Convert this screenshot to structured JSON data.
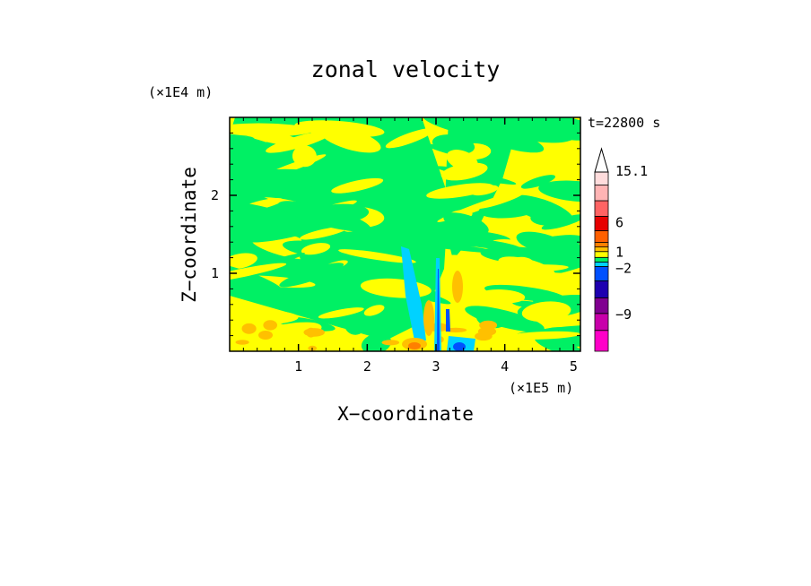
{
  "chart_data": {
    "type": "heatmap",
    "title": "zonal velocity",
    "xlabel": "X−coordinate",
    "ylabel": "Z−coordinate",
    "x_multiplier": "(×1E5 m)",
    "z_multiplier": "(×1E4 m)",
    "time_label": "t=22800 s",
    "x_ticks": [
      "1",
      "2",
      "3",
      "4",
      "5"
    ],
    "z_ticks": [
      "1",
      "2"
    ],
    "xlim": [
      0,
      5.1
    ],
    "zlim": [
      0,
      3
    ],
    "colorbar": {
      "max_label": "15.1",
      "tick_labels": [
        "15.1",
        "6",
        "1",
        "−2",
        "−9"
      ],
      "levels": [
        {
          "color": "#ff00c8"
        },
        {
          "color": "#c800aa"
        },
        {
          "color": "#800090"
        },
        {
          "color": "#1e00b0"
        },
        {
          "color": "#0050ff"
        },
        {
          "color": "#00d2ff"
        },
        {
          "color": "#00f064"
        },
        {
          "color": "#ffff00"
        },
        {
          "color": "#ffc000"
        },
        {
          "color": "#ff8000"
        },
        {
          "color": "#ff6000"
        },
        {
          "color": "#e60000"
        },
        {
          "color": "#ff6464"
        },
        {
          "color": "#ffb4b4"
        },
        {
          "color": "#ffdcdc"
        }
      ]
    },
    "field_colors": {
      "background": "#ffff00",
      "weak_negative": "#00f064",
      "moderate_negative": "#00d2ff",
      "strong_negative": "#0050ff",
      "weak_positive": "#ffc000",
      "moderate_positive": "#ff8000"
    }
  }
}
